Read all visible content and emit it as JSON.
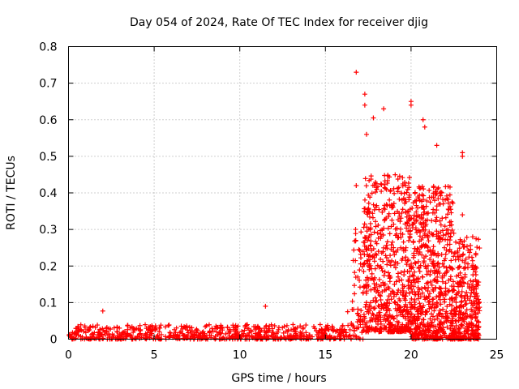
{
  "chart_data": {
    "type": "scatter",
    "title": "Day 054 of 2024, Rate Of TEC Index for receiver djig",
    "xlabel": "GPS time / hours",
    "ylabel": "ROTI / TECUs",
    "xlim": [
      0,
      25
    ],
    "ylim": [
      0,
      0.8
    ],
    "x_ticks": [
      "0",
      "5",
      "10",
      "15",
      "20",
      "25"
    ],
    "y_ticks": [
      "0",
      "0.1",
      "0.2",
      "0.3",
      "0.4",
      "0.5",
      "0.6",
      "0.7",
      "0.8"
    ],
    "grid": true,
    "marker": "plus",
    "series_color": "#ff0000",
    "notable_points": [
      {
        "x": 16.8,
        "y": 0.73
      },
      {
        "x": 17.3,
        "y": 0.67
      },
      {
        "x": 17.3,
        "y": 0.64
      },
      {
        "x": 17.4,
        "y": 0.56
      },
      {
        "x": 17.8,
        "y": 0.605
      },
      {
        "x": 18.4,
        "y": 0.63
      },
      {
        "x": 20.0,
        "y": 0.65
      },
      {
        "x": 20.0,
        "y": 0.64
      },
      {
        "x": 20.7,
        "y": 0.6
      },
      {
        "x": 20.8,
        "y": 0.58
      },
      {
        "x": 21.5,
        "y": 0.53
      },
      {
        "x": 23.0,
        "y": 0.51
      },
      {
        "x": 23.0,
        "y": 0.5
      },
      {
        "x": 16.8,
        "y": 0.42
      },
      {
        "x": 23.0,
        "y": 0.34
      },
      {
        "x": 2.0,
        "y": 0.077
      },
      {
        "x": 11.5,
        "y": 0.09
      },
      {
        "x": 16.3,
        "y": 0.075
      }
    ],
    "segments": [
      {
        "x_start": 0,
        "x_end": 16.5,
        "y_min": 0.0,
        "y_max": 0.04,
        "points": 700
      },
      {
        "x_start": 16.5,
        "x_end": 17.2,
        "y_min": 0.0,
        "y_max": 0.35,
        "points": 60
      },
      {
        "x_start": 17.2,
        "x_end": 20.0,
        "y_min": 0.02,
        "y_max": 0.45,
        "points": 600
      },
      {
        "x_start": 20.0,
        "x_end": 22.5,
        "y_min": 0.0,
        "y_max": 0.42,
        "points": 650
      },
      {
        "x_start": 22.5,
        "x_end": 24.0,
        "y_min": 0.0,
        "y_max": 0.28,
        "points": 320
      }
    ]
  }
}
